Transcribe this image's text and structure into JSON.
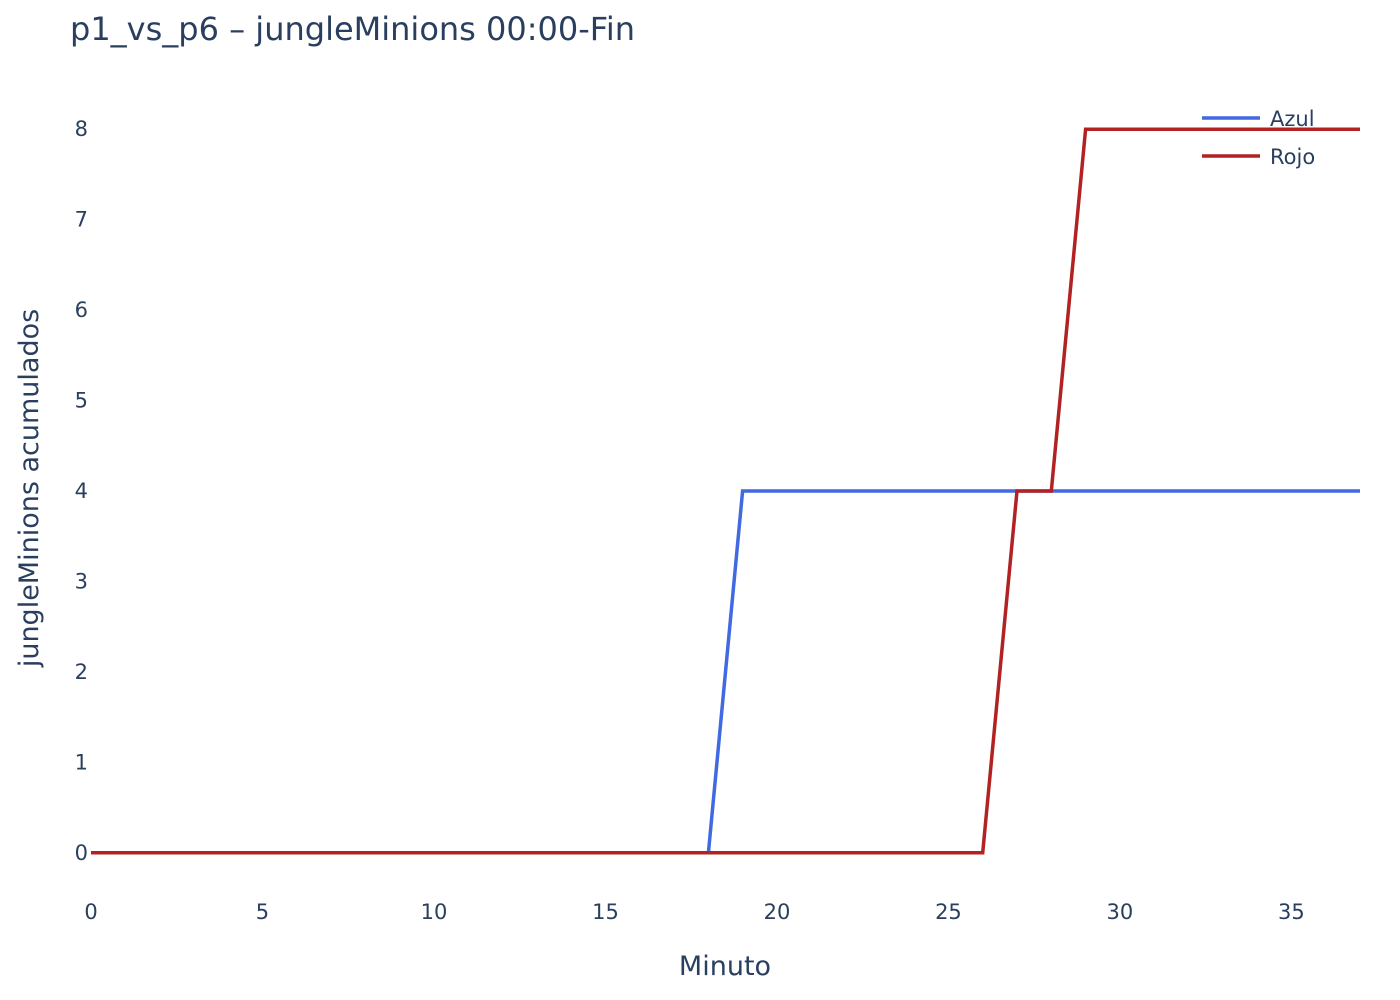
{
  "chart_data": {
    "type": "line",
    "title": "p1_vs_p6 – jungleMinions 00:00-Fin",
    "xlabel": "Minuto",
    "ylabel": "jungleMinions acumulados",
    "xlim": [
      0,
      37
    ],
    "ylim": [
      -0.4,
      8.5
    ],
    "x_ticks": [
      0,
      5,
      10,
      15,
      20,
      25,
      30,
      35
    ],
    "y_ticks": [
      0,
      1,
      2,
      3,
      4,
      5,
      6,
      7,
      8
    ],
    "grid": false,
    "legend_position": "top-right",
    "series": [
      {
        "name": "Azul",
        "color": "#4169e1",
        "x": [
          0,
          18,
          19,
          37
        ],
        "y": [
          0,
          0,
          4,
          4
        ]
      },
      {
        "name": "Rojo",
        "color": "#b22222",
        "x": [
          0,
          26,
          27,
          28,
          29,
          37
        ],
        "y": [
          0,
          0,
          4,
          4,
          8,
          8
        ]
      }
    ]
  }
}
